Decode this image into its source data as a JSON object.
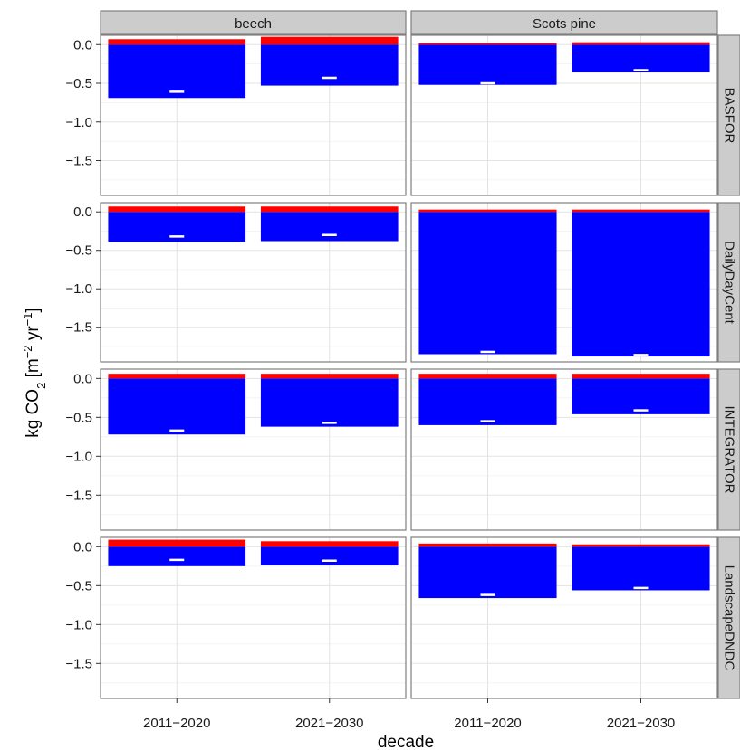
{
  "chart_data": {
    "type": "bar",
    "xlabel": "decade",
    "ylabel": {
      "prefix": "kg CO",
      "sub": "2",
      "units_open": " [m",
      "sup1": "−2",
      "units_mid": " yr",
      "sup2": "−1",
      "units_close": "]"
    },
    "categories": [
      "2011−2020",
      "2021−2030"
    ],
    "columns": [
      "beech",
      "Scots pine"
    ],
    "rows": [
      "BASFOR",
      "DailyDayCent",
      "INTEGRATOR",
      "LandscapeDNDC"
    ],
    "ylim": [
      -1.95,
      0.12
    ],
    "yticks": [
      0.0,
      -0.5,
      -1.0,
      -1.5
    ],
    "ytick_labels": [
      "0.0",
      "−0.5",
      "−1.0",
      "−1.5"
    ],
    "grid": true,
    "series_colors": {
      "positive": "#ff0000",
      "negative": "#0000ff",
      "net": "#ffffff"
    },
    "panels": [
      {
        "column": "beech",
        "row": "BASFOR",
        "positive": [
          0.07,
          0.1
        ],
        "negative": [
          -0.69,
          -0.53
        ],
        "net": [
          -0.61,
          -0.43
        ]
      },
      {
        "column": "Scots pine",
        "row": "BASFOR",
        "positive": [
          0.02,
          0.03
        ],
        "negative": [
          -0.52,
          -0.36
        ],
        "net": [
          -0.5,
          -0.33
        ]
      },
      {
        "column": "beech",
        "row": "DailyDayCent",
        "positive": [
          0.07,
          0.07
        ],
        "negative": [
          -0.39,
          -0.38
        ],
        "net": [
          -0.32,
          -0.3
        ]
      },
      {
        "column": "Scots pine",
        "row": "DailyDayCent",
        "positive": [
          0.03,
          0.03
        ],
        "negative": [
          -1.85,
          -1.88
        ],
        "net": [
          -1.82,
          -1.86
        ]
      },
      {
        "column": "beech",
        "row": "INTEGRATOR",
        "positive": [
          0.06,
          0.06
        ],
        "negative": [
          -0.72,
          -0.62
        ],
        "net": [
          -0.67,
          -0.57
        ]
      },
      {
        "column": "Scots pine",
        "row": "INTEGRATOR",
        "positive": [
          0.06,
          0.06
        ],
        "negative": [
          -0.6,
          -0.46
        ],
        "net": [
          -0.55,
          -0.41
        ]
      },
      {
        "column": "beech",
        "row": "LandscapeDNDC",
        "positive": [
          0.09,
          0.07
        ],
        "negative": [
          -0.25,
          -0.24
        ],
        "net": [
          -0.17,
          -0.18
        ]
      },
      {
        "column": "Scots pine",
        "row": "LandscapeDNDC",
        "positive": [
          0.04,
          0.03
        ],
        "negative": [
          -0.66,
          -0.56
        ],
        "net": [
          -0.62,
          -0.53
        ]
      }
    ]
  }
}
